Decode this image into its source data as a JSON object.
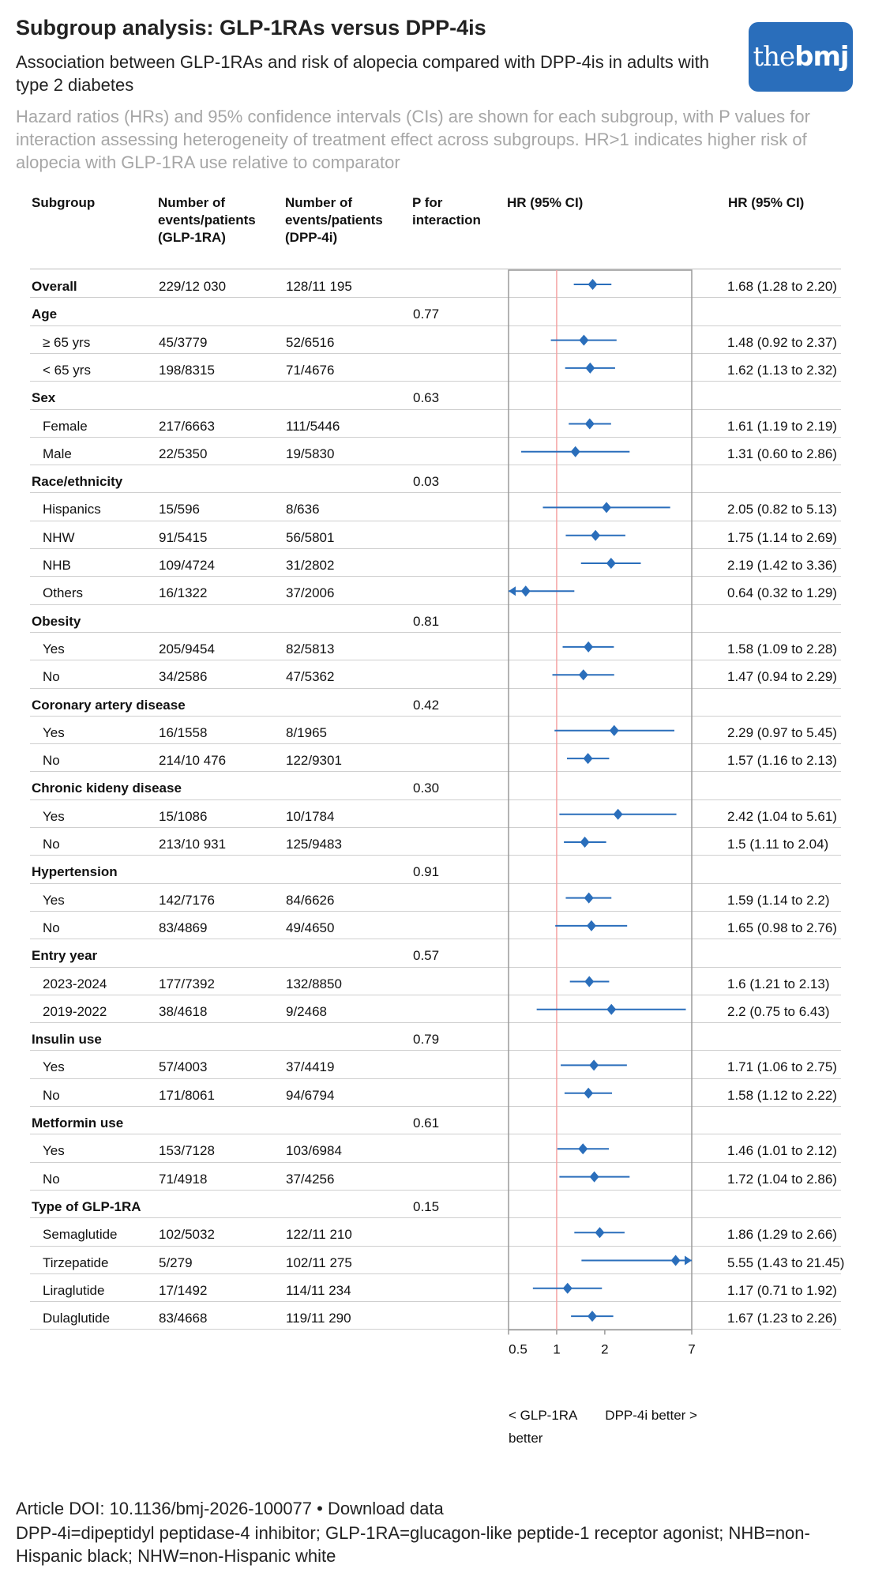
{
  "header": {
    "title": "Subgroup analysis: GLP-1RAs versus DPP-4is",
    "subtitle": "Association between GLP-1RAs and risk of alopecia compared with DPP-4is in adults with type 2 diabetes",
    "description": "Hazard ratios (HRs) and 95% confidence intervals (CIs) are shown for each subgroup, with P values for interaction assessing heterogeneity of treatment effect across subgroups. HR>1 indicates higher risk of alopecia with GLP-1RA use relative to comparator",
    "logo_text_light": "the",
    "logo_text_bold": "bmj",
    "logo_color": "#2a6ebb"
  },
  "table": {
    "columns": {
      "subgroup": "Subgroup",
      "glp": "Number of events/patients (GLP-1RA)",
      "dpp": "Number of events/patients (DPP-4i)",
      "p": "P for interaction",
      "plot": "HR (95% CI)",
      "hr": "HR (95% CI)"
    },
    "rows": [
      {
        "label": "Overall",
        "bold": true,
        "glp": "229/12 030",
        "dpp": "128/11 195",
        "p": "",
        "hr_text": "1.68 (1.28 to 2.20)"
      },
      {
        "label": "Age",
        "bold": true,
        "glp": "",
        "dpp": "",
        "p": "0.77",
        "hr_text": ""
      },
      {
        "label": "≥ 65 yrs",
        "glp": "45/3779",
        "dpp": "52/6516",
        "p": "",
        "hr_text": "1.48 (0.92 to 2.37)"
      },
      {
        "label": "< 65 yrs",
        "glp": "198/8315",
        "dpp": "71/4676",
        "p": "",
        "hr_text": "1.62 (1.13 to 2.32)"
      },
      {
        "label": "Sex",
        "bold": true,
        "glp": "",
        "dpp": "",
        "p": "0.63",
        "hr_text": ""
      },
      {
        "label": "Female",
        "glp": "217/6663",
        "dpp": "111/5446",
        "p": "",
        "hr_text": "1.61 (1.19 to 2.19)"
      },
      {
        "label": "Male",
        "glp": "22/5350",
        "dpp": "19/5830",
        "p": "",
        "hr_text": "1.31 (0.60 to 2.86)"
      },
      {
        "label": "Race/ethnicity",
        "bold": true,
        "glp": "",
        "dpp": "",
        "p": "0.03",
        "hr_text": ""
      },
      {
        "label": "Hispanics",
        "glp": "15/596",
        "dpp": "8/636",
        "p": "",
        "hr_text": "2.05 (0.82 to 5.13)"
      },
      {
        "label": "NHW",
        "glp": "91/5415",
        "dpp": "56/5801",
        "p": "",
        "hr_text": "1.75 (1.14 to 2.69)"
      },
      {
        "label": "NHB",
        "glp": "109/4724",
        "dpp": "31/2802",
        "p": "",
        "hr_text": "2.19 (1.42 to 3.36)"
      },
      {
        "label": "Others",
        "glp": "16/1322",
        "dpp": "37/2006",
        "p": "",
        "hr_text": "0.64 (0.32 to 1.29)"
      },
      {
        "label": "Obesity",
        "bold": true,
        "glp": "",
        "dpp": "",
        "p": "0.81",
        "hr_text": ""
      },
      {
        "label": "Yes",
        "glp": "205/9454",
        "dpp": "82/5813",
        "p": "",
        "hr_text": "1.58 (1.09 to 2.28)"
      },
      {
        "label": "No",
        "glp": "34/2586",
        "dpp": "47/5362",
        "p": "",
        "hr_text": "1.47 (0.94 to 2.29)"
      },
      {
        "label": "Coronary artery disease",
        "bold": true,
        "glp": "",
        "dpp": "",
        "p": "0.42",
        "hr_text": ""
      },
      {
        "label": "Yes",
        "glp": "16/1558",
        "dpp": "8/1965",
        "p": "",
        "hr_text": "2.29 (0.97 to 5.45)"
      },
      {
        "label": "No",
        "glp": "214/10 476",
        "dpp": "122/9301",
        "p": "",
        "hr_text": "1.57 (1.16 to 2.13)"
      },
      {
        "label": "Chronic kideny disease",
        "bold": true,
        "glp": "",
        "dpp": "",
        "p": "0.30",
        "hr_text": ""
      },
      {
        "label": "Yes",
        "glp": "15/1086",
        "dpp": "10/1784",
        "p": "",
        "hr_text": "2.42 (1.04 to 5.61)"
      },
      {
        "label": "No",
        "glp": "213/10 931",
        "dpp": "125/9483",
        "p": "",
        "hr_text": "1.5 (1.11 to 2.04)"
      },
      {
        "label": "Hypertension",
        "bold": true,
        "glp": "",
        "dpp": "",
        "p": "0.91",
        "hr_text": ""
      },
      {
        "label": "Yes",
        "glp": "142/7176",
        "dpp": "84/6626",
        "p": "",
        "hr_text": "1.59 (1.14 to 2.2)"
      },
      {
        "label": "No",
        "glp": "83/4869",
        "dpp": "49/4650",
        "p": "",
        "hr_text": "1.65 (0.98 to 2.76)"
      },
      {
        "label": "Entry year",
        "bold": true,
        "glp": "",
        "dpp": "",
        "p": "0.57",
        "hr_text": ""
      },
      {
        "label": "2023-2024",
        "glp": "177/7392",
        "dpp": "132/8850",
        "p": "",
        "hr_text": "1.6 (1.21 to 2.13)"
      },
      {
        "label": "2019-2022",
        "glp": "38/4618",
        "dpp": "9/2468",
        "p": "",
        "hr_text": "2.2 (0.75 to 6.43)"
      },
      {
        "label": "Insulin use",
        "bold": true,
        "glp": "",
        "dpp": "",
        "p": "0.79",
        "hr_text": ""
      },
      {
        "label": "Yes",
        "glp": "57/4003",
        "dpp": "37/4419",
        "p": "",
        "hr_text": "1.71 (1.06 to 2.75)"
      },
      {
        "label": "No",
        "glp": "171/8061",
        "dpp": "94/6794",
        "p": "",
        "hr_text": "1.58 (1.12 to 2.22)"
      },
      {
        "label": "Metformin use",
        "bold": true,
        "glp": "",
        "dpp": "",
        "p": "0.61",
        "hr_text": ""
      },
      {
        "label": "Yes",
        "glp": "153/7128",
        "dpp": "103/6984",
        "p": "",
        "hr_text": "1.46 (1.01 to 2.12)"
      },
      {
        "label": "No",
        "glp": "71/4918",
        "dpp": "37/4256",
        "p": "",
        "hr_text": "1.72 (1.04 to 2.86)"
      },
      {
        "label": "Type of GLP-1RA",
        "bold": true,
        "glp": "",
        "dpp": "",
        "p": "0.15",
        "hr_text": ""
      },
      {
        "label": "Semaglutide",
        "glp": "102/5032",
        "dpp": "122/11 210",
        "p": "",
        "hr_text": "1.86 (1.29 to 2.66)"
      },
      {
        "label": "Tirzepatide",
        "glp": "5/279",
        "dpp": "102/11 275",
        "p": "",
        "hr_text": "5.55 (1.43 to 21.45)"
      },
      {
        "label": "Liraglutide",
        "glp": "17/1492",
        "dpp": "114/11 234",
        "p": "",
        "hr_text": "1.17 (0.71 to 1.92)"
      },
      {
        "label": "Dulaglutide",
        "glp": "83/4668",
        "dpp": "119/11 290",
        "p": "",
        "hr_text": "1.67 (1.23 to 2.26)"
      }
    ]
  },
  "chart_data": {
    "type": "forest",
    "scale": "log",
    "xlim": [
      0.5,
      7
    ],
    "xticks": [
      "0.5",
      "1",
      "2",
      "7"
    ],
    "reference_line": 1,
    "left_label": "< GLP-1RA better",
    "right_label": "DPP-4i better >",
    "marker_color": "#2a6ebb",
    "reference_color": "#f4a4a4",
    "points": [
      {
        "label": "Overall",
        "hr": 1.68,
        "lo": 1.28,
        "hi": 2.2
      },
      {
        "label": "≥ 65 yrs",
        "hr": 1.48,
        "lo": 0.92,
        "hi": 2.37
      },
      {
        "label": "< 65 yrs",
        "hr": 1.62,
        "lo": 1.13,
        "hi": 2.32
      },
      {
        "label": "Female",
        "hr": 1.61,
        "lo": 1.19,
        "hi": 2.19
      },
      {
        "label": "Male",
        "hr": 1.31,
        "lo": 0.6,
        "hi": 2.86
      },
      {
        "label": "Hispanics",
        "hr": 2.05,
        "lo": 0.82,
        "hi": 5.13
      },
      {
        "label": "NHW",
        "hr": 1.75,
        "lo": 1.14,
        "hi": 2.69
      },
      {
        "label": "NHB",
        "hr": 2.19,
        "lo": 1.42,
        "hi": 3.36
      },
      {
        "label": "Others",
        "hr": 0.64,
        "lo": 0.32,
        "hi": 1.29
      },
      {
        "label": "Obesity: Yes",
        "hr": 1.58,
        "lo": 1.09,
        "hi": 2.28
      },
      {
        "label": "Obesity: No",
        "hr": 1.47,
        "lo": 0.94,
        "hi": 2.29
      },
      {
        "label": "Coronary artery disease: Yes",
        "hr": 2.29,
        "lo": 0.97,
        "hi": 5.45
      },
      {
        "label": "Coronary artery disease: No",
        "hr": 1.57,
        "lo": 1.16,
        "hi": 2.13
      },
      {
        "label": "Chronic kideny disease: Yes",
        "hr": 2.42,
        "lo": 1.04,
        "hi": 5.61
      },
      {
        "label": "Chronic kideny disease: No",
        "hr": 1.5,
        "lo": 1.11,
        "hi": 2.04
      },
      {
        "label": "Hypertension: Yes",
        "hr": 1.59,
        "lo": 1.14,
        "hi": 2.2
      },
      {
        "label": "Hypertension: No",
        "hr": 1.65,
        "lo": 0.98,
        "hi": 2.76
      },
      {
        "label": "2023-2024",
        "hr": 1.6,
        "lo": 1.21,
        "hi": 2.13
      },
      {
        "label": "2019-2022",
        "hr": 2.2,
        "lo": 0.75,
        "hi": 6.43
      },
      {
        "label": "Insulin use: Yes",
        "hr": 1.71,
        "lo": 1.06,
        "hi": 2.75
      },
      {
        "label": "Insulin use: No",
        "hr": 1.58,
        "lo": 1.12,
        "hi": 2.22
      },
      {
        "label": "Metformin use: Yes",
        "hr": 1.46,
        "lo": 1.01,
        "hi": 2.12
      },
      {
        "label": "Metformin use: No",
        "hr": 1.72,
        "lo": 1.04,
        "hi": 2.86
      },
      {
        "label": "Semaglutide",
        "hr": 1.86,
        "lo": 1.29,
        "hi": 2.66
      },
      {
        "label": "Tirzepatide",
        "hr": 5.55,
        "lo": 1.43,
        "hi": 21.45
      },
      {
        "label": "Liraglutide",
        "hr": 1.17,
        "lo": 0.71,
        "hi": 1.92
      },
      {
        "label": "Dulaglutide",
        "hr": 1.67,
        "lo": 1.23,
        "hi": 2.26
      }
    ]
  },
  "footer": {
    "doi": "Article DOI: 10.1136/bmj-2026-100077",
    "bullet": "•",
    "download": "Download data",
    "abbreviations": "DPP-4i=dipeptidyl peptidase-4 inhibitor; GLP-1RA=glucagon-like peptide-1 receptor agonist; NHB=non-Hispanic black; NHW=non-Hispanic white"
  }
}
